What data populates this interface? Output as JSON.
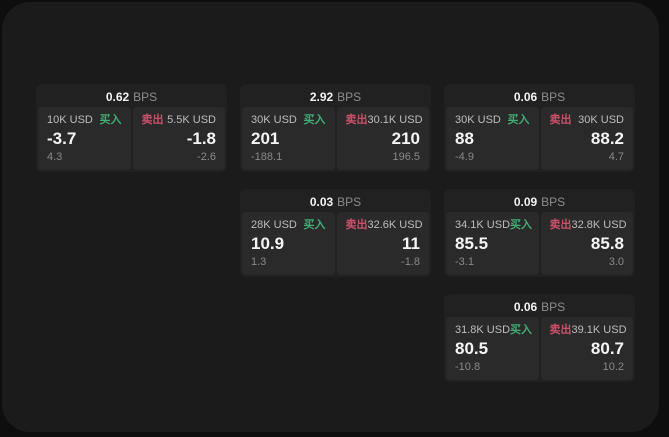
{
  "labels": {
    "bps_unit": "BPS",
    "buy": "买入",
    "sell": "卖出"
  },
  "colors": {
    "page_bg": "#0e0e0e",
    "panel_bg": "#1b1b1b",
    "card_bg": "#212121",
    "tile_bg": "#2a2a2a",
    "buy_green": "#3fae73",
    "sell_red": "#cd5069"
  },
  "cards": [
    {
      "bps": "0.62",
      "buy": {
        "size": "10K USD",
        "value": "-3.7",
        "change": "4.3"
      },
      "sell": {
        "size": "5.5K USD",
        "value": "-1.8",
        "change": "-2.6"
      }
    },
    {
      "bps": "2.92",
      "buy": {
        "size": "30K USD",
        "value": "201",
        "change": "-188.1"
      },
      "sell": {
        "size": "30.1K USD",
        "value": "210",
        "change": "196.5"
      }
    },
    {
      "bps": "0.06",
      "buy": {
        "size": "30K USD",
        "value": "88",
        "change": "-4.9"
      },
      "sell": {
        "size": "30K USD",
        "value": "88.2",
        "change": "4.7"
      }
    },
    {
      "bps": "0.03",
      "buy": {
        "size": "28K USD",
        "value": "10.9",
        "change": "1.3"
      },
      "sell": {
        "size": "32.6K USD",
        "value": "11",
        "change": "-1.8"
      }
    },
    {
      "bps": "0.09",
      "buy": {
        "size": "34.1K USD",
        "value": "85.5",
        "change": "-3.1"
      },
      "sell": {
        "size": "32.8K USD",
        "value": "85.8",
        "change": "3.0"
      }
    },
    {
      "bps": "0.06",
      "buy": {
        "size": "31.8K USD",
        "value": "80.5",
        "change": "-10.8"
      },
      "sell": {
        "size": "39.1K USD",
        "value": "80.7",
        "change": "10.2"
      }
    }
  ]
}
